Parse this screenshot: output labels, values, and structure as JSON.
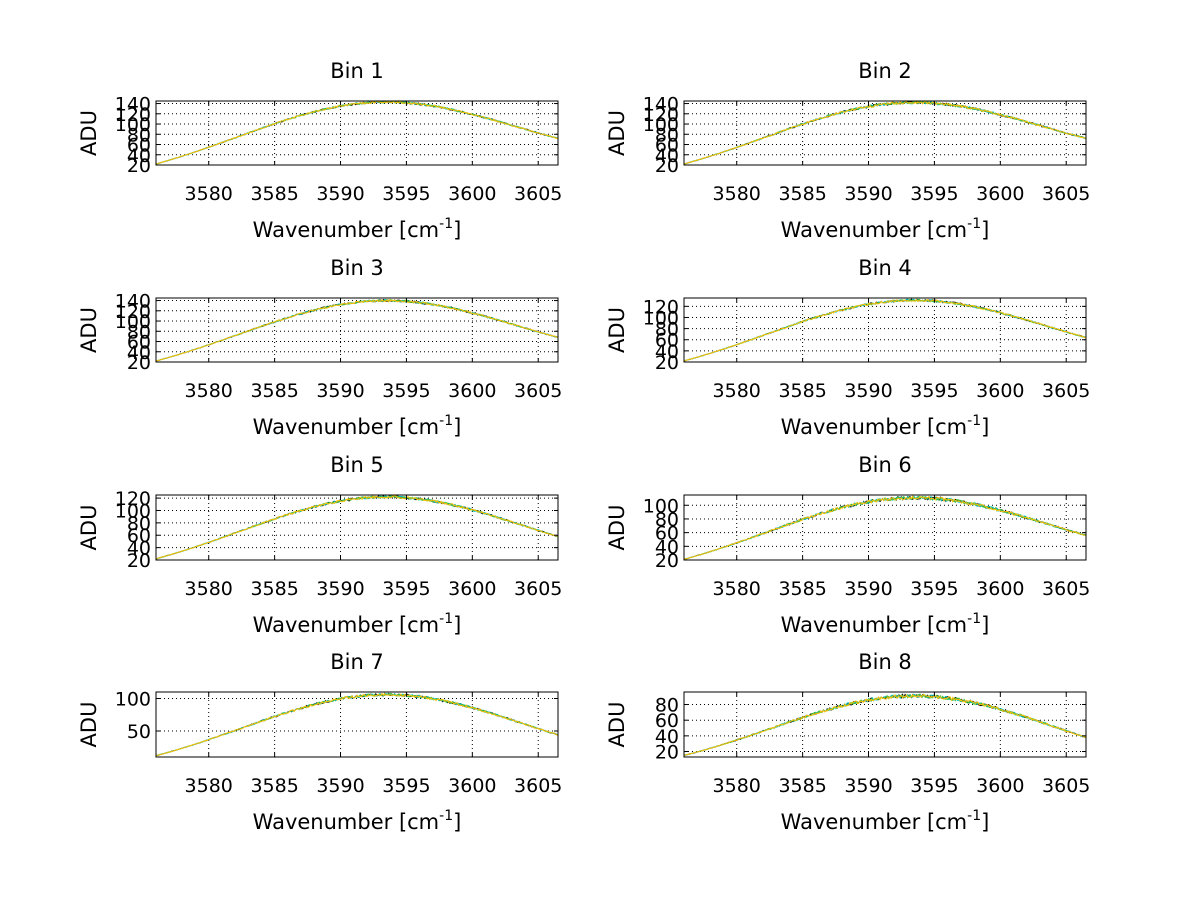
{
  "figure": {
    "xlabel_base": "Wavenumber [cm",
    "xlabel_exp": "-1",
    "xlabel_close": "]",
    "ylabel": "ADU"
  },
  "chart_data": [
    {
      "type": "line",
      "title": "Bin 1",
      "xlim": [
        3576,
        3606.5
      ],
      "ylim": [
        20,
        145
      ],
      "xticks": [
        3580,
        3585,
        3590,
        3595,
        3600,
        3605
      ],
      "yticks": [
        20,
        40,
        60,
        80,
        100,
        120,
        140
      ],
      "ytick_labels": [
        "20",
        "40",
        "60",
        "80",
        "100",
        "120",
        "140"
      ],
      "grid": true,
      "peak": 143,
      "edge_left": 22,
      "edge_right": 72,
      "noise": 2
    },
    {
      "type": "line",
      "title": "Bin 2",
      "xlim": [
        3576,
        3606.5
      ],
      "ylim": [
        20,
        145
      ],
      "xticks": [
        3580,
        3585,
        3590,
        3595,
        3600,
        3605
      ],
      "yticks": [
        20,
        40,
        60,
        80,
        100,
        120,
        140
      ],
      "ytick_labels": [
        "20",
        "40",
        "60",
        "80",
        "100",
        "120",
        "140"
      ],
      "grid": true,
      "peak": 142,
      "edge_left": 22,
      "edge_right": 72,
      "noise": 2.5
    },
    {
      "type": "line",
      "title": "Bin 3",
      "xlim": [
        3576,
        3606.5
      ],
      "ylim": [
        20,
        145
      ],
      "xticks": [
        3580,
        3585,
        3590,
        3595,
        3600,
        3605
      ],
      "yticks": [
        20,
        40,
        60,
        80,
        100,
        120,
        140
      ],
      "ytick_labels": [
        "20",
        "40",
        "60",
        "80",
        "100",
        "120",
        "140"
      ],
      "grid": true,
      "peak": 140,
      "edge_left": 22,
      "edge_right": 68,
      "noise": 2
    },
    {
      "type": "line",
      "title": "Bin 4",
      "xlim": [
        3576,
        3606.5
      ],
      "ylim": [
        20,
        135
      ],
      "xticks": [
        3580,
        3585,
        3590,
        3595,
        3600,
        3605
      ],
      "yticks": [
        20,
        40,
        60,
        80,
        100,
        120
      ],
      "ytick_labels": [
        "20",
        "40",
        "60",
        "80",
        "100",
        "120"
      ],
      "grid": true,
      "peak": 131,
      "edge_left": 22,
      "edge_right": 64,
      "noise": 2
    },
    {
      "type": "line",
      "title": "Bin 5",
      "xlim": [
        3576,
        3606.5
      ],
      "ylim": [
        20,
        125
      ],
      "xticks": [
        3580,
        3585,
        3590,
        3595,
        3600,
        3605
      ],
      "yticks": [
        20,
        40,
        60,
        80,
        100,
        120
      ],
      "ytick_labels": [
        "20",
        "40",
        "60",
        "80",
        "100",
        "120"
      ],
      "grid": true,
      "peak": 122,
      "edge_left": 22,
      "edge_right": 58,
      "noise": 2
    },
    {
      "type": "line",
      "title": "Bin 6",
      "xlim": [
        3576,
        3606.5
      ],
      "ylim": [
        20,
        115
      ],
      "xticks": [
        3580,
        3585,
        3590,
        3595,
        3600,
        3605
      ],
      "yticks": [
        20,
        40,
        60,
        80,
        100
      ],
      "ytick_labels": [
        "20",
        "40",
        "60",
        "80",
        "100"
      ],
      "grid": true,
      "peak": 111,
      "edge_left": 21,
      "edge_right": 56,
      "noise": 2.5
    },
    {
      "type": "line",
      "title": "Bin 7",
      "xlim": [
        3576,
        3606.5
      ],
      "ylim": [
        10,
        110
      ],
      "xticks": [
        3580,
        3585,
        3590,
        3595,
        3600,
        3605
      ],
      "yticks": [
        50,
        100
      ],
      "ytick_labels": [
        "50",
        "100"
      ],
      "grid": true,
      "peak": 106,
      "edge_left": 12,
      "edge_right": 44,
      "noise": 2
    },
    {
      "type": "line",
      "title": "Bin 8",
      "xlim": [
        3576,
        3606.5
      ],
      "ylim": [
        13,
        96
      ],
      "xticks": [
        3580,
        3585,
        3590,
        3595,
        3600,
        3605
      ],
      "yticks": [
        20,
        40,
        60,
        80
      ],
      "ytick_labels": [
        "20",
        "40",
        "60",
        "80"
      ],
      "grid": true,
      "peak": 91,
      "edge_left": 15,
      "edge_right": 38,
      "noise": 2.2
    }
  ],
  "series_colors": [
    "#000000",
    "#00bfbf",
    "#3fbf3f",
    "#ffbf00"
  ],
  "model": {
    "center": 3593.5,
    "width": 10.8
  }
}
